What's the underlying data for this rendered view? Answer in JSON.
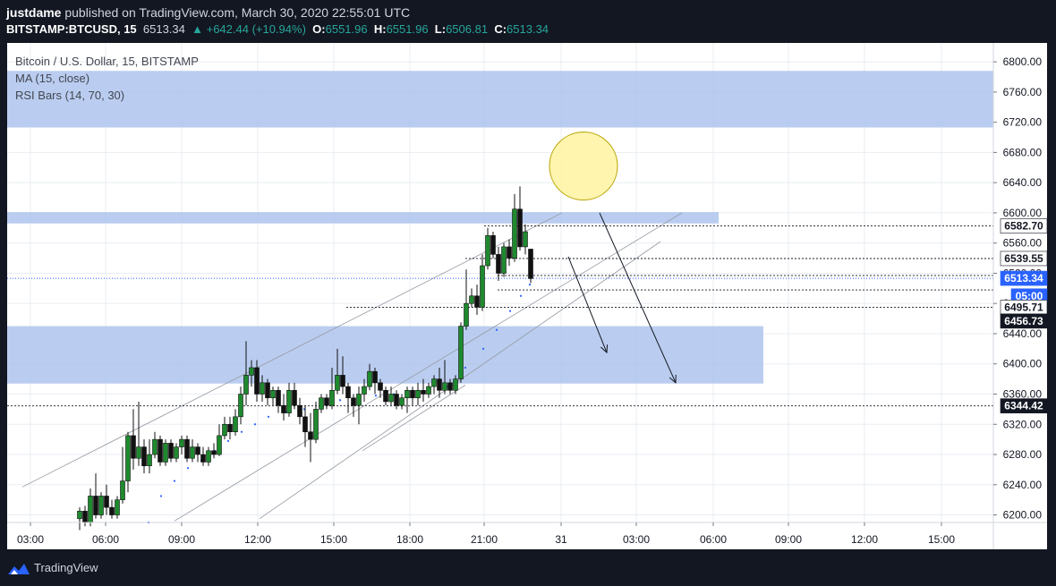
{
  "header": {
    "author": "justdame",
    "published_text": " published on TradingView.com, March 30, 2020 22:55:01 UTC",
    "symbol": "BITSTAMP:BTCUSD, 15",
    "last": "6513.34",
    "change": "▲ +642.44 (+10.94%)",
    "o_label": "O:",
    "o_value": "6551.96",
    "h_label": "H:",
    "h_value": "6551.96",
    "l_label": "L:",
    "l_value": "6506.81",
    "c_label": "C:",
    "c_value": "6513.34"
  },
  "legend": {
    "title": "Bitcoin / U.S. Dollar, 15, BITSTAMP",
    "indicator1": "MA (15, close)",
    "indicator2": "RSI Bars (14, 70, 30)"
  },
  "footer": {
    "brand": "TradingView"
  },
  "colors": {
    "background": "#ffffff",
    "grid": "#e8edf3",
    "up": "#1e8a2e",
    "down": "#111111",
    "zone": "#a9c1ec",
    "circle_fill": "#fff3a0",
    "circle_stroke": "#b8a400",
    "current_price_line": "#2962ff"
  },
  "chart_data": {
    "type": "candlestick",
    "symbol": "BITSTAMP:BTCUSD",
    "interval": "15",
    "ylim": [
      6190,
      6825
    ],
    "y_ticks": [
      "6200.00",
      "6240.00",
      "6280.00",
      "6320.00",
      "6360.00",
      "6400.00",
      "6440.00",
      "6480.00",
      "6520.00",
      "6560.00",
      "6600.00",
      "6640.00",
      "6680.00",
      "6720.00",
      "6760.00",
      "6800.00"
    ],
    "x_ticks": [
      "03:00",
      "06:00",
      "09:00",
      "12:00",
      "15:00",
      "18:00",
      "21:00",
      "31",
      "03:00",
      "06:00",
      "09:00",
      "12:00",
      "15:00"
    ],
    "price_labels": [
      {
        "text": "6582.70",
        "price": 6582.7,
        "style": "white"
      },
      {
        "text": "6539.55",
        "price": 6539.55,
        "style": "white"
      },
      {
        "text": "6513.34",
        "price": 6513.34,
        "style": "blue"
      },
      {
        "text": "05:00",
        "price": 6490.0,
        "style": "blue"
      },
      {
        "text": "6495.71",
        "price": 6475.0,
        "style": "white"
      },
      {
        "text": "6456.73",
        "price": 6456.73,
        "style": "dark"
      },
      {
        "text": "6344.42",
        "price": 6344.42,
        "style": "dark"
      }
    ],
    "zones": [
      {
        "price_low": 6713,
        "price_high": 6788,
        "x_end": 1110
      },
      {
        "price_low": 6586,
        "price_high": 6601,
        "x_end": 803
      },
      {
        "price_low": 6374,
        "price_high": 6450,
        "x_end": 853
      }
    ],
    "candles": [
      [
        89,
        6195,
        6205,
        6180,
        6210
      ],
      [
        95,
        6205,
        6190,
        6185,
        6212
      ],
      [
        101,
        6190,
        6225,
        6185,
        6235
      ],
      [
        107,
        6225,
        6200,
        6195,
        6255
      ],
      [
        113,
        6200,
        6225,
        6195,
        6230
      ],
      [
        119,
        6225,
        6210,
        6200,
        6240
      ],
      [
        125,
        6210,
        6200,
        6195,
        6220
      ],
      [
        131,
        6200,
        6220,
        6195,
        6225
      ],
      [
        137,
        6220,
        6245,
        6215,
        6290
      ],
      [
        143,
        6245,
        6305,
        6230,
        6310
      ],
      [
        149,
        6305,
        6275,
        6260,
        6340
      ],
      [
        155,
        6275,
        6290,
        6265,
        6350
      ],
      [
        161,
        6290,
        6265,
        6255,
        6300
      ],
      [
        167,
        6265,
        6280,
        6255,
        6300
      ],
      [
        173,
        6280,
        6300,
        6275,
        6310
      ],
      [
        179,
        6300,
        6270,
        6265,
        6305
      ],
      [
        185,
        6270,
        6295,
        6265,
        6300
      ],
      [
        191,
        6295,
        6275,
        6270,
        6300
      ],
      [
        197,
        6275,
        6290,
        6270,
        6295
      ],
      [
        203,
        6290,
        6300,
        6280,
        6305
      ],
      [
        209,
        6300,
        6275,
        6270,
        6305
      ],
      [
        215,
        6275,
        6290,
        6270,
        6300
      ],
      [
        221,
        6290,
        6280,
        6270,
        6295
      ],
      [
        227,
        6280,
        6270,
        6265,
        6290
      ],
      [
        233,
        6270,
        6285,
        6265,
        6290
      ],
      [
        239,
        6285,
        6280,
        6275,
        6295
      ],
      [
        245,
        6280,
        6305,
        6278,
        6320
      ],
      [
        251,
        6305,
        6320,
        6300,
        6330
      ],
      [
        257,
        6320,
        6310,
        6300,
        6330
      ],
      [
        263,
        6310,
        6330,
        6305,
        6340
      ],
      [
        269,
        6330,
        6360,
        6320,
        6370
      ],
      [
        275,
        6360,
        6385,
        6345,
        6430
      ],
      [
        281,
        6385,
        6395,
        6370,
        6405
      ],
      [
        287,
        6395,
        6360,
        6350,
        6405
      ],
      [
        293,
        6360,
        6375,
        6350,
        6385
      ],
      [
        299,
        6375,
        6355,
        6345,
        6380
      ],
      [
        305,
        6355,
        6365,
        6345,
        6370
      ],
      [
        311,
        6365,
        6345,
        6335,
        6370
      ],
      [
        317,
        6345,
        6335,
        6325,
        6360
      ],
      [
        323,
        6335,
        6365,
        6330,
        6375
      ],
      [
        329,
        6365,
        6345,
        6340,
        6375
      ],
      [
        335,
        6345,
        6330,
        6320,
        6355
      ],
      [
        341,
        6330,
        6310,
        6290,
        6345
      ],
      [
        347,
        6310,
        6300,
        6270,
        6335
      ],
      [
        353,
        6300,
        6340,
        6295,
        6350
      ],
      [
        359,
        6340,
        6355,
        6335,
        6360
      ],
      [
        365,
        6355,
        6345,
        6340,
        6360
      ],
      [
        371,
        6345,
        6365,
        6340,
        6395
      ],
      [
        377,
        6365,
        6385,
        6360,
        6420
      ],
      [
        383,
        6385,
        6370,
        6360,
        6410
      ],
      [
        389,
        6370,
        6355,
        6335,
        6375
      ],
      [
        395,
        6355,
        6345,
        6330,
        6360
      ],
      [
        401,
        6345,
        6360,
        6320,
        6370
      ],
      [
        407,
        6360,
        6370,
        6350,
        6380
      ],
      [
        413,
        6370,
        6390,
        6365,
        6400
      ],
      [
        419,
        6390,
        6375,
        6360,
        6395
      ],
      [
        425,
        6375,
        6365,
        6355,
        6380
      ],
      [
        431,
        6365,
        6350,
        6345,
        6370
      ],
      [
        437,
        6350,
        6360,
        6345,
        6370
      ],
      [
        443,
        6360,
        6345,
        6340,
        6365
      ],
      [
        449,
        6345,
        6355,
        6340,
        6360
      ],
      [
        455,
        6355,
        6365,
        6335,
        6370
      ],
      [
        461,
        6365,
        6355,
        6345,
        6370
      ],
      [
        467,
        6355,
        6365,
        6345,
        6375
      ],
      [
        473,
        6365,
        6360,
        6350,
        6380
      ],
      [
        479,
        6360,
        6370,
        6355,
        6375
      ],
      [
        485,
        6370,
        6380,
        6360,
        6385
      ],
      [
        491,
        6380,
        6365,
        6355,
        6395
      ],
      [
        497,
        6365,
        6375,
        6360,
        6405
      ],
      [
        503,
        6375,
        6365,
        6360,
        6380
      ],
      [
        509,
        6365,
        6380,
        6360,
        6385
      ],
      [
        515,
        6380,
        6450,
        6375,
        6455
      ],
      [
        521,
        6450,
        6480,
        6445,
        6525
      ],
      [
        527,
        6480,
        6490,
        6475,
        6500
      ],
      [
        533,
        6490,
        6475,
        6465,
        6505
      ],
      [
        539,
        6475,
        6530,
        6470,
        6545
      ],
      [
        545,
        6530,
        6570,
        6525,
        6580
      ],
      [
        551,
        6570,
        6545,
        6540,
        6575
      ],
      [
        557,
        6545,
        6520,
        6510,
        6555
      ],
      [
        563,
        6520,
        6555,
        6515,
        6560
      ],
      [
        569,
        6555,
        6540,
        6530,
        6565
      ],
      [
        575,
        6540,
        6605,
        6535,
        6625
      ],
      [
        581,
        6605,
        6555,
        6550,
        6635
      ],
      [
        587,
        6555,
        6575,
        6545,
        6585
      ],
      [
        593,
        6552,
        6513,
        6507,
        6552
      ]
    ],
    "ma_points": [
      [
        166,
        6190
      ],
      [
        180,
        6225
      ],
      [
        195,
        6245
      ],
      [
        210,
        6262
      ],
      [
        225,
        6272
      ],
      [
        240,
        6285
      ],
      [
        255,
        6298
      ],
      [
        270,
        6310
      ],
      [
        285,
        6320
      ],
      [
        300,
        6330
      ],
      [
        320,
        6336
      ],
      [
        340,
        6340
      ],
      [
        360,
        6346
      ],
      [
        380,
        6352
      ],
      [
        400,
        6356
      ],
      [
        420,
        6358
      ],
      [
        440,
        6360
      ],
      [
        460,
        6362
      ],
      [
        480,
        6365
      ],
      [
        500,
        6370
      ],
      [
        520,
        6395
      ],
      [
        540,
        6420
      ],
      [
        555,
        6445
      ],
      [
        570,
        6470
      ],
      [
        582,
        6490
      ],
      [
        592,
        6505
      ]
    ],
    "trend_lines": [
      [
        [
          25,
          6237
        ],
        [
          628,
          6600
        ]
      ],
      [
        [
          195,
          6192
        ],
        [
          762,
          6600
        ]
      ],
      [
        [
          290,
          6195
        ],
        [
          738,
          6562
        ]
      ],
      [
        [
          405,
          6285
        ],
        [
          520,
          6372
        ]
      ]
    ],
    "horizontal_rays": [
      [
        541,
        6582.7
      ],
      [
        520,
        6539.55
      ],
      [
        556,
        6517
      ],
      [
        387,
        6475
      ],
      [
        0,
        6344.42
      ],
      [
        592,
        6539.55
      ],
      [
        556,
        6498
      ]
    ],
    "arrows": [
      [
        [
          635,
          6542
        ],
        [
          678,
          6415
        ]
      ],
      [
        [
          670,
          6600
        ],
        [
          755,
          6375
        ]
      ]
    ],
    "circle": {
      "cx": 652,
      "cy": 6662,
      "r": 38
    }
  }
}
